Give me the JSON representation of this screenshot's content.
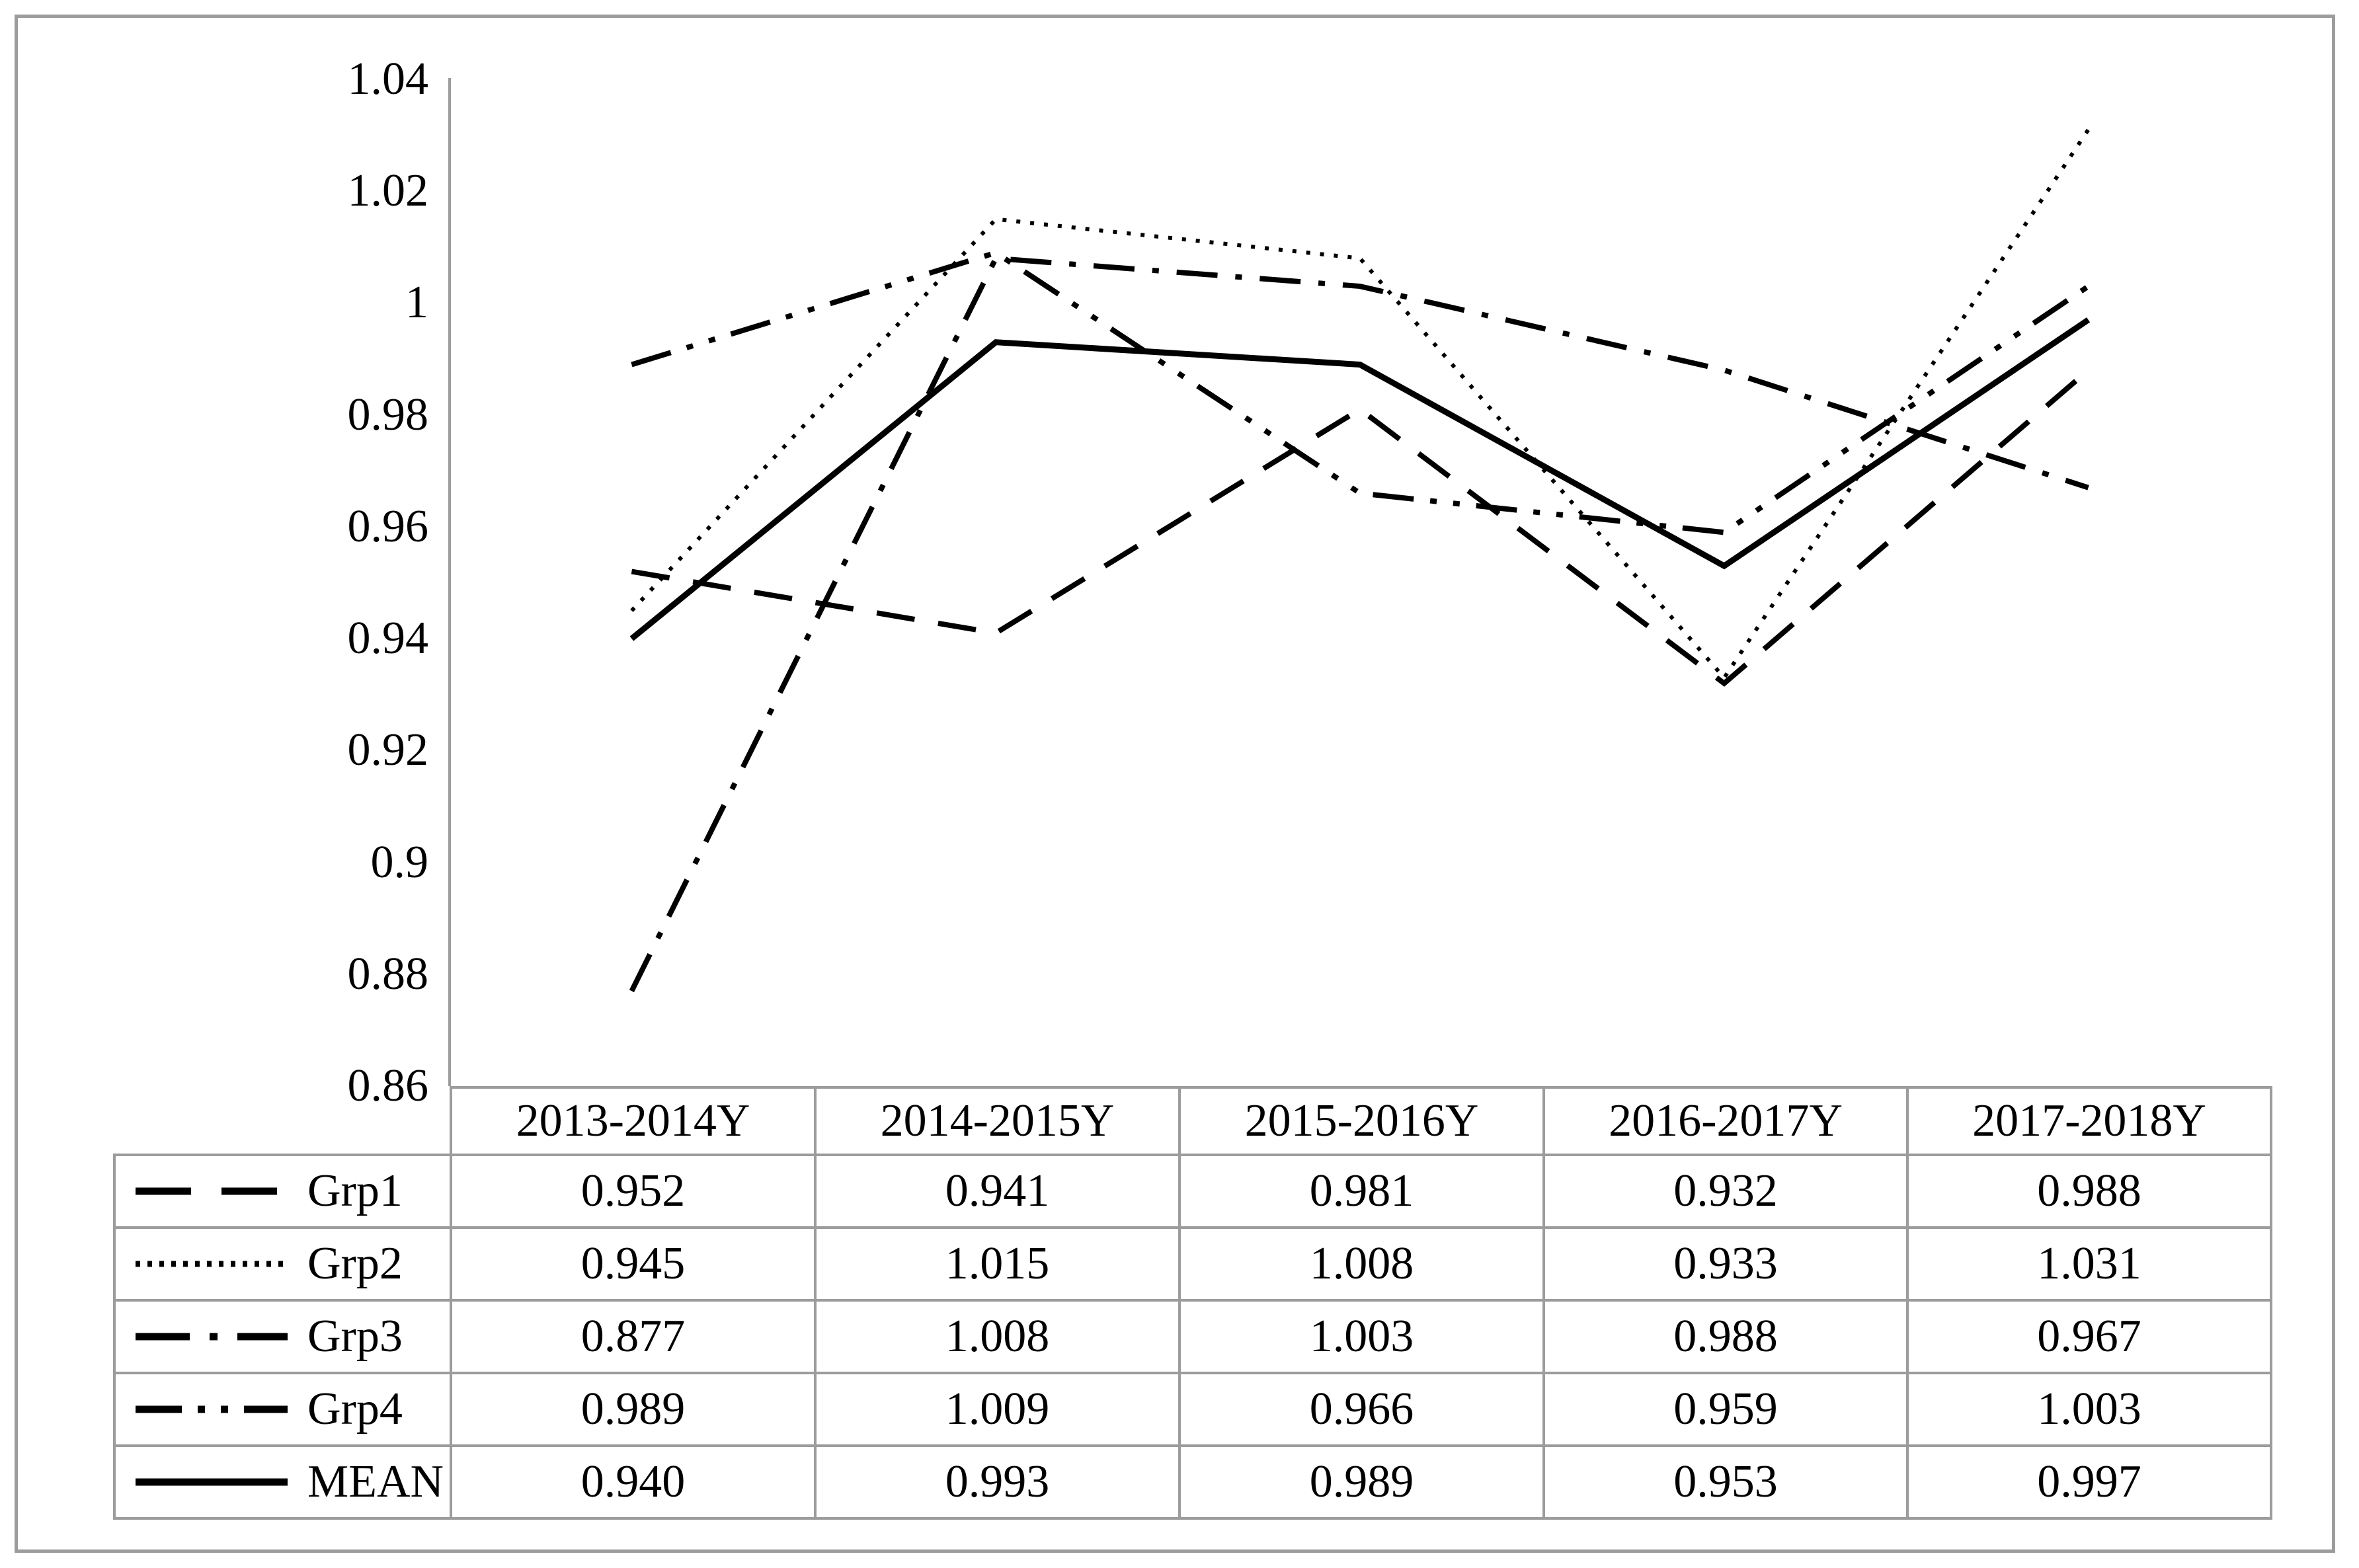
{
  "colors": {
    "border_gray": "#9c9c9c",
    "line_black": "#000000",
    "background": "#ffffff",
    "text": "#000000"
  },
  "chart_data": {
    "type": "line",
    "title": "",
    "xlabel": "",
    "ylabel": "",
    "ylim": [
      0.86,
      1.04
    ],
    "y_tick_step": 0.02,
    "grid": false,
    "legend_position": "table-left-column",
    "y_ticks": [
      "1.04",
      "1.02",
      "1",
      "0.98",
      "0.96",
      "0.94",
      "0.92",
      "0.9",
      "0.88",
      "0.86"
    ],
    "categories": [
      "2013-2014Y",
      "2014-2015Y",
      "2015-2016Y",
      "2016-2017Y",
      "2017-2018Y"
    ],
    "series": [
      {
        "name": "Grp1",
        "line_style": "dash",
        "values": [
          0.952,
          0.941,
          0.981,
          0.932,
          0.988
        ],
        "cells": [
          "0.952",
          "0.941",
          "0.981",
          "0.932",
          "0.988"
        ]
      },
      {
        "name": "Grp2",
        "line_style": "dot",
        "values": [
          0.945,
          1.015,
          1.008,
          0.933,
          1.031
        ],
        "cells": [
          "0.945",
          "1.015",
          "1.008",
          "0.933",
          "1.031"
        ]
      },
      {
        "name": "Grp3",
        "line_style": "dashdot",
        "values": [
          0.877,
          1.008,
          1.003,
          0.988,
          0.967
        ],
        "cells": [
          "0.877",
          "1.008",
          "1.003",
          "0.988",
          "0.967"
        ]
      },
      {
        "name": "Grp4",
        "line_style": "dashdotdot",
        "values": [
          0.989,
          1.009,
          0.966,
          0.959,
          1.003
        ],
        "cells": [
          "0.989",
          "1.009",
          "0.966",
          "0.959",
          "1.003"
        ]
      },
      {
        "name": "MEAN",
        "line_style": "solid",
        "values": [
          0.94,
          0.993,
          0.989,
          0.953,
          0.997
        ],
        "cells": [
          "0.940",
          "0.993",
          "0.989",
          "0.953",
          "0.997"
        ]
      }
    ]
  }
}
